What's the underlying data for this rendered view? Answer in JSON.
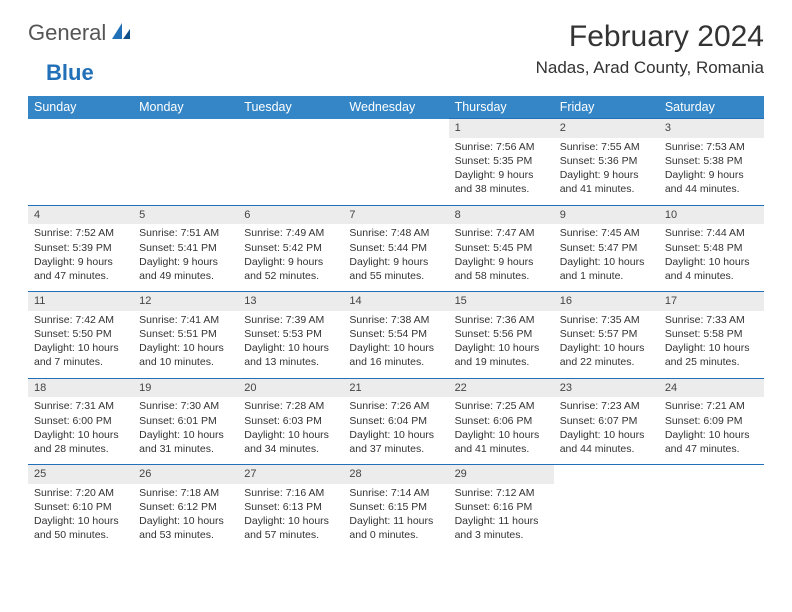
{
  "logo": {
    "text_general": "General",
    "text_blue": "Blue"
  },
  "title": "February 2024",
  "location": "Nadas, Arad County, Romania",
  "colors": {
    "header_bg": "#3486c7",
    "header_text": "#ffffff",
    "daynum_bg": "#ececec",
    "border": "#2270b8",
    "body_text": "#333333",
    "page_bg": "#ffffff"
  },
  "weekdays": [
    "Sunday",
    "Monday",
    "Tuesday",
    "Wednesday",
    "Thursday",
    "Friday",
    "Saturday"
  ],
  "weeks": [
    {
      "days": [
        null,
        null,
        null,
        null,
        {
          "n": "1",
          "sunrise": "Sunrise: 7:56 AM",
          "sunset": "Sunset: 5:35 PM",
          "daylight1": "Daylight: 9 hours",
          "daylight2": "and 38 minutes."
        },
        {
          "n": "2",
          "sunrise": "Sunrise: 7:55 AM",
          "sunset": "Sunset: 5:36 PM",
          "daylight1": "Daylight: 9 hours",
          "daylight2": "and 41 minutes."
        },
        {
          "n": "3",
          "sunrise": "Sunrise: 7:53 AM",
          "sunset": "Sunset: 5:38 PM",
          "daylight1": "Daylight: 9 hours",
          "daylight2": "and 44 minutes."
        }
      ]
    },
    {
      "days": [
        {
          "n": "4",
          "sunrise": "Sunrise: 7:52 AM",
          "sunset": "Sunset: 5:39 PM",
          "daylight1": "Daylight: 9 hours",
          "daylight2": "and 47 minutes."
        },
        {
          "n": "5",
          "sunrise": "Sunrise: 7:51 AM",
          "sunset": "Sunset: 5:41 PM",
          "daylight1": "Daylight: 9 hours",
          "daylight2": "and 49 minutes."
        },
        {
          "n": "6",
          "sunrise": "Sunrise: 7:49 AM",
          "sunset": "Sunset: 5:42 PM",
          "daylight1": "Daylight: 9 hours",
          "daylight2": "and 52 minutes."
        },
        {
          "n": "7",
          "sunrise": "Sunrise: 7:48 AM",
          "sunset": "Sunset: 5:44 PM",
          "daylight1": "Daylight: 9 hours",
          "daylight2": "and 55 minutes."
        },
        {
          "n": "8",
          "sunrise": "Sunrise: 7:47 AM",
          "sunset": "Sunset: 5:45 PM",
          "daylight1": "Daylight: 9 hours",
          "daylight2": "and 58 minutes."
        },
        {
          "n": "9",
          "sunrise": "Sunrise: 7:45 AM",
          "sunset": "Sunset: 5:47 PM",
          "daylight1": "Daylight: 10 hours",
          "daylight2": "and 1 minute."
        },
        {
          "n": "10",
          "sunrise": "Sunrise: 7:44 AM",
          "sunset": "Sunset: 5:48 PM",
          "daylight1": "Daylight: 10 hours",
          "daylight2": "and 4 minutes."
        }
      ]
    },
    {
      "days": [
        {
          "n": "11",
          "sunrise": "Sunrise: 7:42 AM",
          "sunset": "Sunset: 5:50 PM",
          "daylight1": "Daylight: 10 hours",
          "daylight2": "and 7 minutes."
        },
        {
          "n": "12",
          "sunrise": "Sunrise: 7:41 AM",
          "sunset": "Sunset: 5:51 PM",
          "daylight1": "Daylight: 10 hours",
          "daylight2": "and 10 minutes."
        },
        {
          "n": "13",
          "sunrise": "Sunrise: 7:39 AM",
          "sunset": "Sunset: 5:53 PM",
          "daylight1": "Daylight: 10 hours",
          "daylight2": "and 13 minutes."
        },
        {
          "n": "14",
          "sunrise": "Sunrise: 7:38 AM",
          "sunset": "Sunset: 5:54 PM",
          "daylight1": "Daylight: 10 hours",
          "daylight2": "and 16 minutes."
        },
        {
          "n": "15",
          "sunrise": "Sunrise: 7:36 AM",
          "sunset": "Sunset: 5:56 PM",
          "daylight1": "Daylight: 10 hours",
          "daylight2": "and 19 minutes."
        },
        {
          "n": "16",
          "sunrise": "Sunrise: 7:35 AM",
          "sunset": "Sunset: 5:57 PM",
          "daylight1": "Daylight: 10 hours",
          "daylight2": "and 22 minutes."
        },
        {
          "n": "17",
          "sunrise": "Sunrise: 7:33 AM",
          "sunset": "Sunset: 5:58 PM",
          "daylight1": "Daylight: 10 hours",
          "daylight2": "and 25 minutes."
        }
      ]
    },
    {
      "days": [
        {
          "n": "18",
          "sunrise": "Sunrise: 7:31 AM",
          "sunset": "Sunset: 6:00 PM",
          "daylight1": "Daylight: 10 hours",
          "daylight2": "and 28 minutes."
        },
        {
          "n": "19",
          "sunrise": "Sunrise: 7:30 AM",
          "sunset": "Sunset: 6:01 PM",
          "daylight1": "Daylight: 10 hours",
          "daylight2": "and 31 minutes."
        },
        {
          "n": "20",
          "sunrise": "Sunrise: 7:28 AM",
          "sunset": "Sunset: 6:03 PM",
          "daylight1": "Daylight: 10 hours",
          "daylight2": "and 34 minutes."
        },
        {
          "n": "21",
          "sunrise": "Sunrise: 7:26 AM",
          "sunset": "Sunset: 6:04 PM",
          "daylight1": "Daylight: 10 hours",
          "daylight2": "and 37 minutes."
        },
        {
          "n": "22",
          "sunrise": "Sunrise: 7:25 AM",
          "sunset": "Sunset: 6:06 PM",
          "daylight1": "Daylight: 10 hours",
          "daylight2": "and 41 minutes."
        },
        {
          "n": "23",
          "sunrise": "Sunrise: 7:23 AM",
          "sunset": "Sunset: 6:07 PM",
          "daylight1": "Daylight: 10 hours",
          "daylight2": "and 44 minutes."
        },
        {
          "n": "24",
          "sunrise": "Sunrise: 7:21 AM",
          "sunset": "Sunset: 6:09 PM",
          "daylight1": "Daylight: 10 hours",
          "daylight2": "and 47 minutes."
        }
      ]
    },
    {
      "days": [
        {
          "n": "25",
          "sunrise": "Sunrise: 7:20 AM",
          "sunset": "Sunset: 6:10 PM",
          "daylight1": "Daylight: 10 hours",
          "daylight2": "and 50 minutes."
        },
        {
          "n": "26",
          "sunrise": "Sunrise: 7:18 AM",
          "sunset": "Sunset: 6:12 PM",
          "daylight1": "Daylight: 10 hours",
          "daylight2": "and 53 minutes."
        },
        {
          "n": "27",
          "sunrise": "Sunrise: 7:16 AM",
          "sunset": "Sunset: 6:13 PM",
          "daylight1": "Daylight: 10 hours",
          "daylight2": "and 57 minutes."
        },
        {
          "n": "28",
          "sunrise": "Sunrise: 7:14 AM",
          "sunset": "Sunset: 6:15 PM",
          "daylight1": "Daylight: 11 hours",
          "daylight2": "and 0 minutes."
        },
        {
          "n": "29",
          "sunrise": "Sunrise: 7:12 AM",
          "sunset": "Sunset: 6:16 PM",
          "daylight1": "Daylight: 11 hours",
          "daylight2": "and 3 minutes."
        },
        null,
        null
      ]
    }
  ]
}
